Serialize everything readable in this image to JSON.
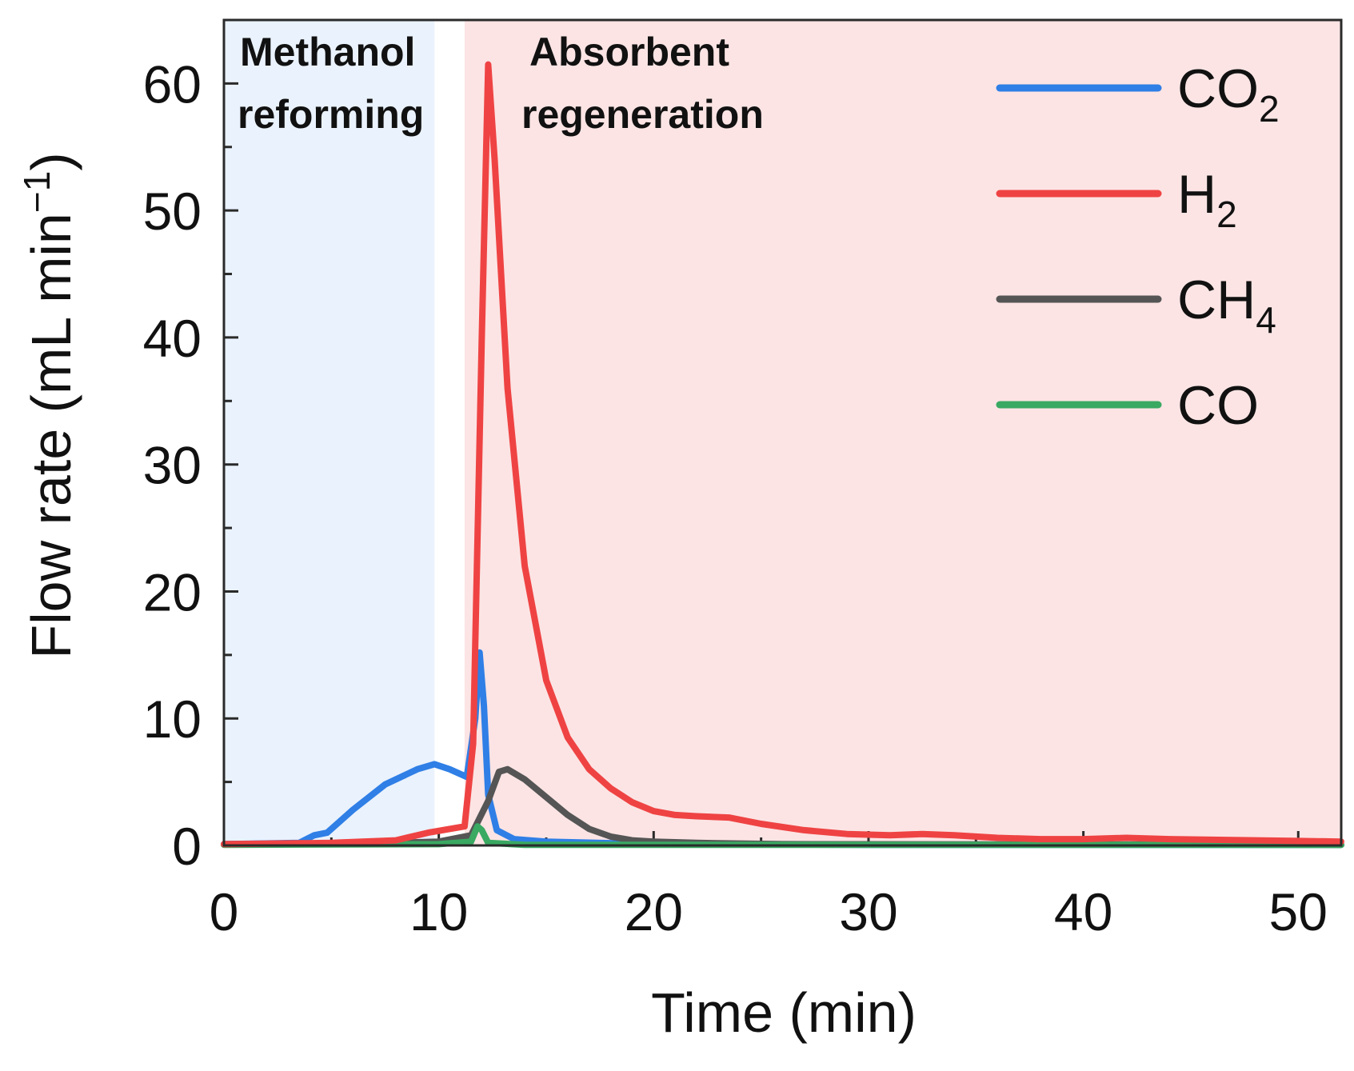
{
  "chart_data": {
    "type": "line",
    "xlabel": "Time (min)",
    "ylabel_main": "Flow rate (mL min",
    "ylabel_sup": "−1",
    "ylabel_close": ")",
    "xlim": [
      0,
      52
    ],
    "ylim": [
      0,
      65
    ],
    "xticks": [
      0,
      10,
      20,
      30,
      40,
      50
    ],
    "yticks": [
      0,
      10,
      20,
      30,
      40,
      50,
      60
    ],
    "x_minor_step": 5,
    "y_minor_step": 5,
    "regions": [
      {
        "name": "Methanol reforming",
        "line1": "Methanol",
        "line2": "reforming",
        "x_start": 0,
        "x_end": 9.8,
        "color": "#eaf2fd"
      },
      {
        "name": "Absorbent regeneration",
        "line1": "Absorbent",
        "line2": "regeneration",
        "x_start": 11.2,
        "x_end": 52,
        "color": "#fce4e4"
      }
    ],
    "series": [
      {
        "name": "CO2",
        "base": "CO",
        "sub": "2",
        "color": "#2f7fe6",
        "points": [
          [
            0,
            0.1
          ],
          [
            3.5,
            0.2
          ],
          [
            4.2,
            0.8
          ],
          [
            4.8,
            1.0
          ],
          [
            6,
            2.8
          ],
          [
            7.5,
            4.8
          ],
          [
            9,
            6.0
          ],
          [
            9.8,
            6.4
          ],
          [
            10.5,
            6.0
          ],
          [
            11.3,
            5.4
          ],
          [
            11.7,
            10
          ],
          [
            11.9,
            15.2
          ],
          [
            12.1,
            11
          ],
          [
            12.3,
            4.0
          ],
          [
            12.7,
            1.2
          ],
          [
            13.5,
            0.5
          ],
          [
            15,
            0.3
          ],
          [
            20,
            0.1
          ],
          [
            30,
            0.05
          ],
          [
            52,
            0.05
          ]
        ]
      },
      {
        "name": "H2",
        "base": "H",
        "sub": "2",
        "color": "#ef4343",
        "points": [
          [
            0,
            0.1
          ],
          [
            5,
            0.2
          ],
          [
            8,
            0.4
          ],
          [
            9.5,
            1.0
          ],
          [
            11.2,
            1.5
          ],
          [
            11.6,
            8
          ],
          [
            12.0,
            40
          ],
          [
            12.3,
            61.5
          ],
          [
            12.6,
            54
          ],
          [
            13.2,
            36
          ],
          [
            14,
            22
          ],
          [
            15,
            13
          ],
          [
            16,
            8.5
          ],
          [
            17,
            6
          ],
          [
            18,
            4.5
          ],
          [
            19,
            3.4
          ],
          [
            20,
            2.7
          ],
          [
            21,
            2.4
          ],
          [
            22,
            2.3
          ],
          [
            23.5,
            2.2
          ],
          [
            25,
            1.7
          ],
          [
            27,
            1.2
          ],
          [
            29,
            0.9
          ],
          [
            31,
            0.8
          ],
          [
            32.5,
            0.9
          ],
          [
            34,
            0.8
          ],
          [
            36,
            0.6
          ],
          [
            38,
            0.5
          ],
          [
            40,
            0.5
          ],
          [
            42,
            0.6
          ],
          [
            44,
            0.5
          ],
          [
            46,
            0.45
          ],
          [
            48,
            0.4
          ],
          [
            50,
            0.35
          ],
          [
            52,
            0.3
          ]
        ]
      },
      {
        "name": "CH4",
        "base": "CH",
        "sub": "4",
        "color": "#555555",
        "points": [
          [
            0,
            0.1
          ],
          [
            8,
            0.2
          ],
          [
            10,
            0.3
          ],
          [
            11.5,
            0.8
          ],
          [
            12.3,
            3.5
          ],
          [
            12.8,
            5.8
          ],
          [
            13.2,
            6.0
          ],
          [
            14,
            5.2
          ],
          [
            15,
            3.8
          ],
          [
            16,
            2.4
          ],
          [
            17,
            1.3
          ],
          [
            18,
            0.7
          ],
          [
            19,
            0.4
          ],
          [
            20,
            0.3
          ],
          [
            22,
            0.2
          ],
          [
            26,
            0.1
          ],
          [
            52,
            0.05
          ]
        ]
      },
      {
        "name": "CO",
        "base": "CO",
        "sub": "",
        "color": "#3aa962",
        "points": [
          [
            0,
            0.05
          ],
          [
            10,
            0.1
          ],
          [
            11.5,
            0.3
          ],
          [
            11.8,
            1.5
          ],
          [
            12.0,
            1.2
          ],
          [
            12.3,
            0.2
          ],
          [
            14,
            0.05
          ],
          [
            52,
            0.05
          ]
        ]
      }
    ]
  }
}
